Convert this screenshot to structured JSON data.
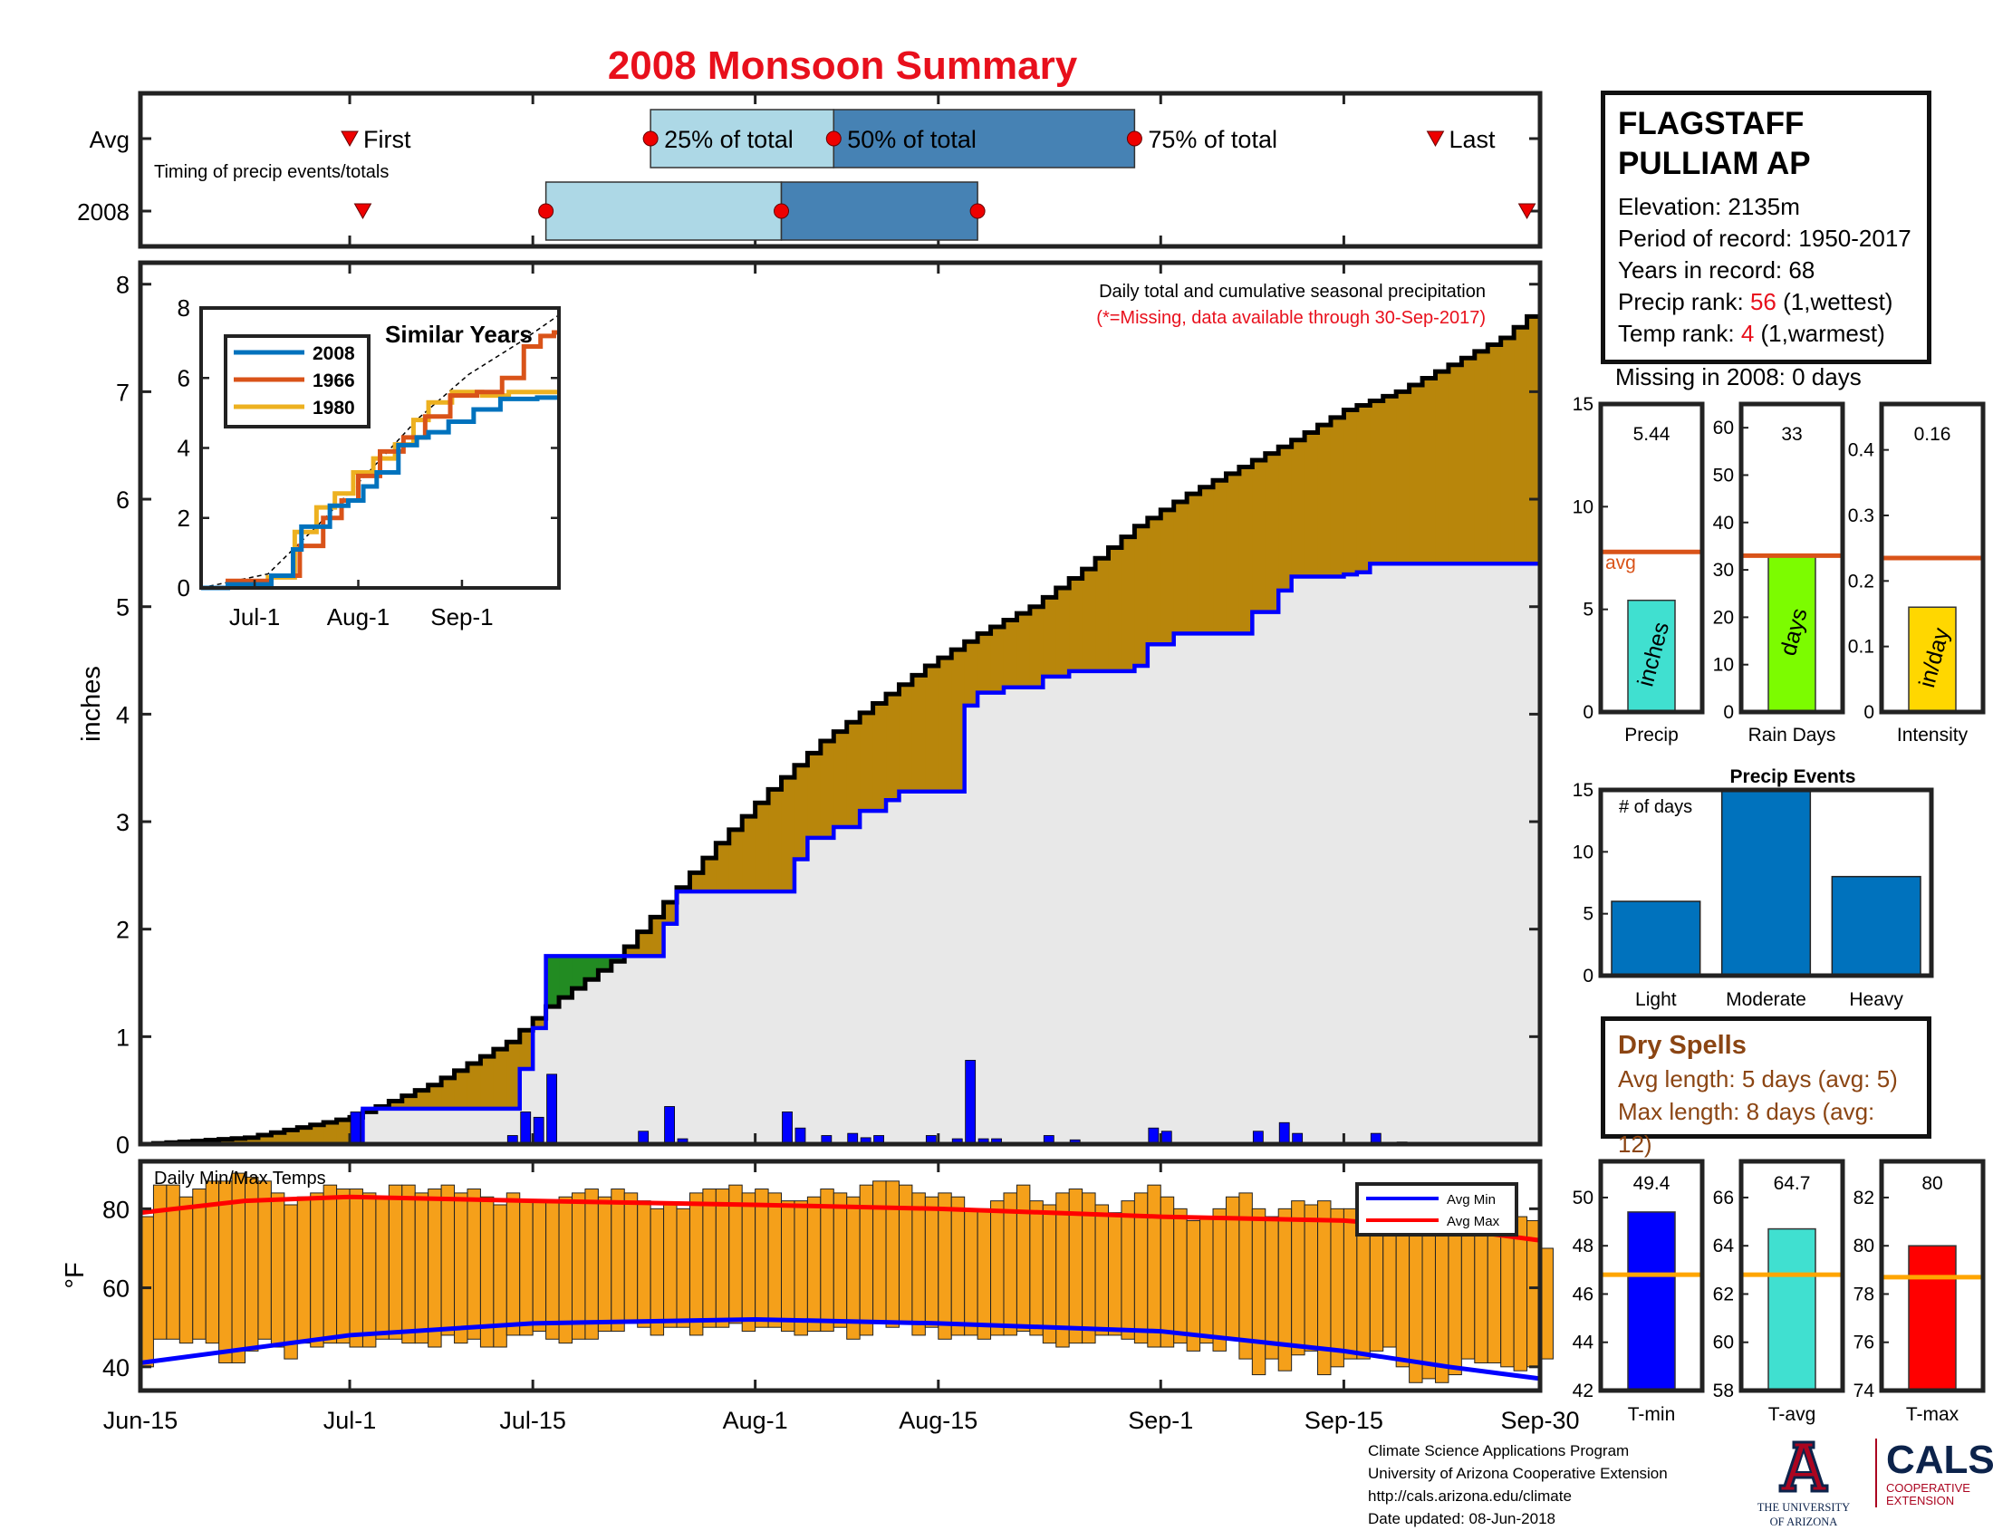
{
  "title": "2008 Monsoon Summary",
  "station": {
    "name_line1": "FLAGSTAFF",
    "name_line2": "PULLIAM AP",
    "elevation": "Elevation: 2135m",
    "period": "Period of record: 1950-2017",
    "years": "Years in record: 68",
    "precip_rank_label": "Precip rank: ",
    "precip_rank_value": "56",
    "precip_rank_note": " (1,wettest)",
    "temp_rank_label": "Temp rank: ",
    "temp_rank_value": "4",
    "temp_rank_note": " (1,warmest)",
    "missing": "Missing in 2008: 0 days"
  },
  "dry_spells": {
    "title": "Dry Spells",
    "avg_length": "Avg length: 5 days (avg: 5)",
    "max_length": "Max length: 8 days (avg: 12)"
  },
  "credits": {
    "line1": "Climate Science Applications Program",
    "line2": "University of Arizona Cooperative Extension",
    "line3": "http://cals.arizona.edu/climate",
    "line4": "Date updated: 08-Jun-2018"
  },
  "logos": {
    "ua_letter": "A",
    "ua_line1": "THE UNIVERSITY",
    "ua_line2": "OF ARIZONA",
    "cals": "CALS",
    "cals_line1": "COOPERATIVE",
    "cals_line2": "EXTENSION"
  },
  "colors": {
    "title_red": "#e8101c",
    "cum_current": "#0000ff",
    "cum_avg": "#000000",
    "deficit_fill": "#b8860b",
    "surplus_fill": "#228b22",
    "daily_bar": "#0000ff",
    "temp_bar": "#f5a01a",
    "avg_min": "#0000ff",
    "avg_max": "#ff0000",
    "timing_light": "#add8e6",
    "timing_dark": "#4682b4",
    "avg_line": "#d95319",
    "events_bar": "#0072bd"
  },
  "chart_data": [
    {
      "type": "timeline",
      "name": "timing",
      "subtitle": "Timing of precip events/totals",
      "rows": [
        "Avg",
        "2008"
      ],
      "markers": {
        "first": "First",
        "p25": "25% of total",
        "p50": "50% of total",
        "p75": "75% of total",
        "last": "Last"
      },
      "avg": {
        "first": "Jul-1",
        "p25": "Jul-24",
        "p50": "Aug-7",
        "p75": "Aug-30",
        "last": "Sep-22"
      },
      "y2008": {
        "first": "Jul-2",
        "p25": "Jul-16",
        "p50": "Aug-3",
        "p75": "Aug-18",
        "last": "Sep-29"
      }
    },
    {
      "type": "area",
      "name": "cumulative_precip",
      "notes": [
        "Daily total and cumulative seasonal precipitation",
        "(*=Missing, data available through 30-Sep-2017)"
      ],
      "ylabel": "inches",
      "ylim": [
        0,
        8.2
      ],
      "yticks": [
        0,
        1,
        2,
        3,
        4,
        5,
        6,
        7,
        8
      ],
      "x_labels": [
        "Jun-15",
        "Jul-1",
        "Jul-15",
        "Aug-1",
        "Aug-15",
        "Sep-1",
        "Sep-15",
        "Sep-30"
      ],
      "x_day_index": [
        0,
        16,
        30,
        47,
        61,
        78,
        92,
        107
      ],
      "avg_cumulative_points": [
        [
          0,
          0
        ],
        [
          8,
          0.06
        ],
        [
          16,
          0.25
        ],
        [
          22,
          0.55
        ],
        [
          28,
          0.95
        ],
        [
          31,
          1.28
        ],
        [
          36,
          1.7
        ],
        [
          40,
          2.25
        ],
        [
          44,
          2.8
        ],
        [
          48,
          3.3
        ],
        [
          52,
          3.75
        ],
        [
          56,
          4.1
        ],
        [
          60,
          4.45
        ],
        [
          64,
          4.75
        ],
        [
          68,
          5.0
        ],
        [
          72,
          5.35
        ],
        [
          76,
          5.75
        ],
        [
          80,
          6.05
        ],
        [
          84,
          6.3
        ],
        [
          88,
          6.55
        ],
        [
          92,
          6.83
        ],
        [
          96,
          7.0
        ],
        [
          100,
          7.25
        ],
        [
          104,
          7.5
        ],
        [
          107,
          7.8
        ]
      ],
      "y2008_cumulative_points": [
        [
          0,
          0
        ],
        [
          16,
          0
        ],
        [
          17,
          0.33
        ],
        [
          28,
          0.33
        ],
        [
          29,
          0.7
        ],
        [
          30,
          1.08
        ],
        [
          31,
          1.75
        ],
        [
          36,
          1.75
        ],
        [
          40,
          2.05
        ],
        [
          41,
          2.35
        ],
        [
          49,
          2.35
        ],
        [
          50,
          2.65
        ],
        [
          51,
          2.85
        ],
        [
          53,
          2.95
        ],
        [
          55,
          3.1
        ],
        [
          57,
          3.2
        ],
        [
          58,
          3.28
        ],
        [
          62,
          3.28
        ],
        [
          63,
          4.08
        ],
        [
          64,
          4.2
        ],
        [
          66,
          4.25
        ],
        [
          69,
          4.35
        ],
        [
          71,
          4.4
        ],
        [
          76,
          4.45
        ],
        [
          77,
          4.65
        ],
        [
          79,
          4.75
        ],
        [
          84,
          4.75
        ],
        [
          85,
          4.95
        ],
        [
          87,
          5.15
        ],
        [
          88,
          5.28
        ],
        [
          92,
          5.3
        ],
        [
          93,
          5.32
        ],
        [
          94,
          5.4
        ],
        [
          107,
          5.44
        ]
      ],
      "daily_precip": [
        [
          16,
          0.3
        ],
        [
          28,
          0.08
        ],
        [
          29,
          0.3
        ],
        [
          30,
          0.25
        ],
        [
          31,
          0.65
        ],
        [
          38,
          0.12
        ],
        [
          40,
          0.35
        ],
        [
          41,
          0.05
        ],
        [
          49,
          0.3
        ],
        [
          50,
          0.15
        ],
        [
          52,
          0.08
        ],
        [
          54,
          0.1
        ],
        [
          55,
          0.06
        ],
        [
          56,
          0.08
        ],
        [
          60,
          0.08
        ],
        [
          62,
          0.05
        ],
        [
          63,
          0.78
        ],
        [
          64,
          0.05
        ],
        [
          65,
          0.05
        ],
        [
          69,
          0.08
        ],
        [
          71,
          0.04
        ],
        [
          77,
          0.15
        ],
        [
          78,
          0.12
        ],
        [
          85,
          0.12
        ],
        [
          87,
          0.2
        ],
        [
          88,
          0.1
        ],
        [
          94,
          0.1
        ],
        [
          96,
          0.02
        ]
      ]
    },
    {
      "type": "line",
      "name": "similar_years",
      "title": "Similar Years",
      "x_labels": [
        "Jul-1",
        "Aug-1",
        "Sep-1"
      ],
      "ylim": [
        0,
        8
      ],
      "yticks": [
        0,
        2,
        4,
        6,
        8
      ],
      "series": [
        {
          "name": "2008",
          "color": "#0072bd",
          "points": [
            [
              0,
              0
            ],
            [
              16,
              0.1
            ],
            [
              26,
              0.35
            ],
            [
              29,
              1.1
            ],
            [
              31,
              1.75
            ],
            [
              36,
              1.75
            ],
            [
              41,
              2.35
            ],
            [
              47,
              2.5
            ],
            [
              50,
              2.9
            ],
            [
              55,
              3.3
            ],
            [
              63,
              4.08
            ],
            [
              66,
              4.3
            ],
            [
              70,
              4.45
            ],
            [
              78,
              4.75
            ],
            [
              85,
              5.1
            ],
            [
              94,
              5.4
            ],
            [
              107,
              5.44
            ]
          ]
        },
        {
          "name": "1966",
          "color": "#d95319",
          "points": [
            [
              0,
              0
            ],
            [
              16,
              0.2
            ],
            [
              26,
              0.35
            ],
            [
              33,
              1.2
            ],
            [
              40,
              2.0
            ],
            [
              44,
              2.5
            ],
            [
              50,
              3.2
            ],
            [
              57,
              3.9
            ],
            [
              64,
              4.3
            ],
            [
              70,
              4.9
            ],
            [
              79,
              5.5
            ],
            [
              86,
              5.6
            ],
            [
              94,
              6.0
            ],
            [
              99,
              6.9
            ],
            [
              104,
              7.2
            ],
            [
              107,
              7.3
            ]
          ]
        },
        {
          "name": "1980",
          "color": "#edb120",
          "points": [
            [
              0,
              0
            ],
            [
              16,
              0.1
            ],
            [
              24,
              0.3
            ],
            [
              32,
              1.6
            ],
            [
              37,
              2.3
            ],
            [
              43,
              2.7
            ],
            [
              48,
              3.3
            ],
            [
              55,
              3.7
            ],
            [
              61,
              4.1
            ],
            [
              66,
              4.8
            ],
            [
              70,
              5.3
            ],
            [
              80,
              5.6
            ],
            [
              88,
              5.5
            ],
            [
              96,
              5.6
            ],
            [
              107,
              5.6
            ]
          ]
        }
      ],
      "avg_points": [
        [
          0,
          0
        ],
        [
          20,
          0.4
        ],
        [
          35,
          1.8
        ],
        [
          50,
          3.3
        ],
        [
          65,
          4.85
        ],
        [
          80,
          6.1
        ],
        [
          95,
          7.0
        ],
        [
          107,
          7.8
        ]
      ]
    },
    {
      "type": "bar",
      "name": "daily_temps",
      "title": "Daily Min/Max Temps",
      "ylabel": "°F",
      "yticks": [
        40,
        60,
        80
      ],
      "ylim": [
        34,
        92
      ],
      "legend": [
        "Avg Min",
        "Avg Max"
      ],
      "legend_position": "top-right",
      "min_temps": [
        40,
        47,
        47,
        46,
        47,
        46,
        41,
        41,
        44,
        47,
        45,
        42,
        46,
        45,
        46,
        46,
        45,
        45,
        47,
        47,
        46,
        46,
        45,
        48,
        46,
        47,
        45,
        45,
        48,
        48,
        49,
        47,
        46,
        47,
        47,
        49,
        49,
        51,
        50,
        48,
        50,
        50,
        48,
        50,
        50,
        51,
        49,
        50,
        50,
        49,
        48,
        49,
        49,
        50,
        47,
        48,
        51,
        50,
        51,
        48,
        50,
        47,
        48,
        48,
        47,
        48,
        48,
        49,
        48,
        46,
        45,
        46,
        46,
        48,
        48,
        47,
        46,
        45,
        45,
        46,
        44,
        46,
        44,
        47,
        42,
        38,
        42,
        39,
        43,
        44,
        38,
        40,
        42,
        42,
        44,
        45,
        40,
        36,
        37,
        36,
        38,
        42,
        41,
        41,
        40,
        39,
        40,
        42
      ],
      "max_temps": [
        78,
        86,
        86,
        83,
        85,
        87,
        87,
        89,
        88,
        87,
        84,
        81,
        83,
        84,
        86,
        85,
        85,
        84,
        83,
        86,
        86,
        84,
        85,
        86,
        84,
        85,
        83,
        81,
        84,
        82,
        82,
        82,
        83,
        84,
        85,
        83,
        85,
        84,
        82,
        80,
        81,
        80,
        84,
        85,
        85,
        86,
        84,
        85,
        84,
        82,
        82,
        83,
        85,
        84,
        83,
        86,
        87,
        87,
        86,
        84,
        83,
        84,
        83,
        80,
        80,
        82,
        84,
        86,
        82,
        81,
        84,
        85,
        84,
        81,
        79,
        82,
        84,
        86,
        83,
        80,
        77,
        78,
        80,
        83,
        84,
        80,
        78,
        80,
        82,
        81,
        82,
        80,
        80,
        78,
        76,
        74,
        77,
        76,
        76,
        75,
        75,
        76,
        77,
        75,
        74,
        78,
        77,
        70
      ],
      "avg_min_points": [
        [
          0,
          41
        ],
        [
          16,
          48
        ],
        [
          30,
          51
        ],
        [
          47,
          52
        ],
        [
          61,
          51
        ],
        [
          78,
          49
        ],
        [
          92,
          44
        ],
        [
          100,
          40
        ],
        [
          107,
          37
        ]
      ],
      "avg_max_points": [
        [
          0,
          79
        ],
        [
          8,
          82
        ],
        [
          16,
          83
        ],
        [
          30,
          82
        ],
        [
          47,
          81
        ],
        [
          61,
          80
        ],
        [
          78,
          78
        ],
        [
          92,
          77
        ],
        [
          100,
          75
        ],
        [
          107,
          72
        ]
      ]
    },
    {
      "type": "bar",
      "name": "season_totals",
      "avg_label": "avg",
      "panels": [
        {
          "category": "Precip",
          "value": 5.44,
          "value_label": "5.44",
          "unit": "inches",
          "avg": 7.8,
          "ylim": [
            0,
            15
          ],
          "yticks": [
            0,
            5,
            10,
            15
          ],
          "color": "#40e0d0"
        },
        {
          "category": "Rain Days",
          "value": 33,
          "value_label": "33",
          "unit": "days",
          "avg": 33,
          "ylim": [
            0,
            65
          ],
          "yticks": [
            0,
            10,
            20,
            30,
            40,
            50,
            60
          ],
          "color": "#7cfc00"
        },
        {
          "category": "Intensity",
          "value": 0.16,
          "value_label": "0.16",
          "unit": "in/day",
          "avg": 0.235,
          "ylim": [
            0,
            0.47
          ],
          "yticks": [
            0,
            0.1,
            0.2,
            0.3,
            0.4
          ],
          "color": "#ffd700"
        }
      ]
    },
    {
      "type": "bar",
      "name": "precip_events",
      "title": "Precip Events",
      "ylabel": "# of days",
      "categories": [
        "Light",
        "Moderate",
        "Heavy"
      ],
      "values": [
        6,
        15,
        8
      ],
      "ylim": [
        0,
        15
      ],
      "yticks": [
        0,
        5,
        10,
        15
      ]
    },
    {
      "type": "bar",
      "name": "temp_summary",
      "panels": [
        {
          "category": "T-min",
          "value": 49.4,
          "value_label": "49.4",
          "avg": 46.8,
          "ylim": [
            42,
            51.5
          ],
          "yticks": [
            42,
            44,
            46,
            48,
            50
          ],
          "color": "#0000ff"
        },
        {
          "category": "T-avg",
          "value": 64.7,
          "value_label": "64.7",
          "avg": 62.8,
          "ylim": [
            58,
            67.5
          ],
          "yticks": [
            58,
            60,
            62,
            64,
            66
          ],
          "color": "#40e0d0"
        },
        {
          "category": "T-max",
          "value": 80,
          "value_label": "80",
          "avg": 78.7,
          "ylim": [
            74,
            83.5
          ],
          "yticks": [
            74,
            76,
            78,
            80,
            82
          ],
          "color": "#ff0000"
        }
      ]
    }
  ]
}
